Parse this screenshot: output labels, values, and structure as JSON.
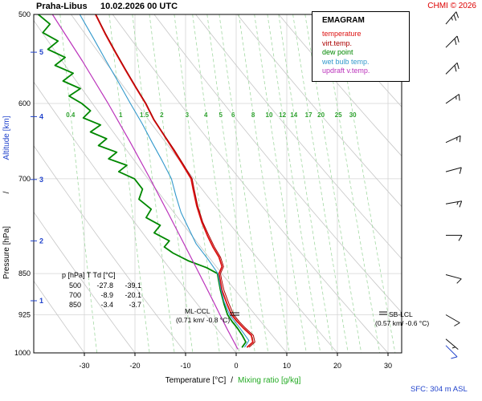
{
  "header": {
    "station": "Praha-Libus",
    "datetime": "10.02.2026 00 UTC",
    "copyright": "CHMI © 2026"
  },
  "legend": {
    "title": "EMAGRAM",
    "entries": [
      {
        "label": "temperature",
        "color": "#dd1111"
      },
      {
        "label": "virt.temp.",
        "color": "#aa0000"
      },
      {
        "label": "dew point",
        "color": "#008800"
      },
      {
        "label": "wet bulb temp.",
        "color": "#3399cc"
      },
      {
        "label": "updraft v.temp.",
        "color": "#bb33bb"
      }
    ]
  },
  "axes": {
    "pressure_label": "Pressure [hPa]",
    "separator": "/",
    "altitude_label": "Altitude [km]",
    "x_label": "Temperature [°C]",
    "x_sep": "/",
    "x_label2": "Mixing ratio [g/kg]",
    "pressure_ticks": [
      500,
      600,
      700,
      850,
      925,
      1000
    ],
    "altitude_ticks": [
      1,
      2,
      3,
      4,
      5
    ],
    "temp_ticks": [
      -30,
      -20,
      -10,
      0,
      10,
      20,
      30
    ]
  },
  "annotations": {
    "table_header": "p [hPa]     T    Td [°C]",
    "table_rows": [
      [
        "500",
        "-27.8",
        "-39.1"
      ],
      [
        "700",
        "-8.9",
        "-20.1"
      ],
      [
        "850",
        "-3.4",
        "-3.7"
      ]
    ],
    "ml_ccl": {
      "line1": "ML-CCL",
      "line2": "(0.71 km/ -0.8 °C)"
    },
    "sb_lcl": {
      "line1": "SB-LCL",
      "line2": "(0.57 km/ -0.6 °C)"
    },
    "sfc": "SFC: 304 m ASL"
  },
  "chart_data": {
    "type": "line",
    "title": "EMAGRAM sounding Praha-Libus 10.02.2026 00 UTC",
    "x_axis": {
      "label": "Temperature [°C]",
      "min": -40,
      "max": 32.7,
      "ticks": [
        -30,
        -20,
        -10,
        0,
        10,
        20,
        30
      ]
    },
    "y_axis": {
      "label": "Pressure [hPa]",
      "scale": "log",
      "top": 500,
      "bottom": 1000,
      "ticks": [
        500,
        600,
        700,
        850,
        925,
        1000
      ]
    },
    "units": {
      "pressure": "hPa",
      "temperature": "°C",
      "mixing_ratio": "g/kg"
    },
    "mixing_ratio_lines": [
      0.4,
      1,
      1.5,
      2,
      3,
      4,
      5,
      6,
      8,
      10,
      12,
      14,
      17,
      20,
      25,
      30
    ],
    "dry_adiabats_theta": [
      -40,
      -30,
      -20,
      -10,
      0,
      10,
      20,
      30,
      40,
      50,
      60,
      70,
      80,
      90,
      100
    ],
    "series": [
      {
        "name": "temperature",
        "color": "#dd1111",
        "width": 1.8,
        "points": [
          [
            988,
            2.2
          ],
          [
            978,
            3.3
          ],
          [
            965,
            3.0
          ],
          [
            950,
            1.4
          ],
          [
            938,
            0.2
          ],
          [
            925,
            -0.9
          ],
          [
            905,
            -1.8
          ],
          [
            880,
            -2.8
          ],
          [
            860,
            -3.2
          ],
          [
            850,
            -3.4
          ],
          [
            838,
            -2.8
          ],
          [
            822,
            -3.4
          ],
          [
            805,
            -4.6
          ],
          [
            788,
            -5.6
          ],
          [
            765,
            -6.8
          ],
          [
            740,
            -7.8
          ],
          [
            715,
            -8.5
          ],
          [
            700,
            -8.9
          ],
          [
            680,
            -10.6
          ],
          [
            660,
            -12.4
          ],
          [
            640,
            -14.3
          ],
          [
            620,
            -16.3
          ],
          [
            600,
            -17.9
          ],
          [
            580,
            -19.9
          ],
          [
            560,
            -21.9
          ],
          [
            540,
            -23.9
          ],
          [
            520,
            -25.9
          ],
          [
            500,
            -27.8
          ]
        ]
      },
      {
        "name": "virt_temp",
        "color": "#aa0000",
        "width": 1.0,
        "points": [
          [
            988,
            2.6
          ],
          [
            978,
            3.7
          ],
          [
            965,
            3.4
          ],
          [
            950,
            1.8
          ],
          [
            938,
            0.6
          ],
          [
            925,
            -0.5
          ],
          [
            905,
            -1.4
          ],
          [
            880,
            -2.4
          ],
          [
            860,
            -2.9
          ],
          [
            850,
            -3.1
          ],
          [
            838,
            -2.5
          ],
          [
            822,
            -3.1
          ],
          [
            805,
            -4.3
          ],
          [
            788,
            -5.3
          ],
          [
            765,
            -6.6
          ],
          [
            740,
            -7.6
          ],
          [
            715,
            -8.3
          ],
          [
            700,
            -8.7
          ],
          [
            680,
            -10.4
          ],
          [
            660,
            -12.2
          ],
          [
            640,
            -14.2
          ],
          [
            620,
            -16.2
          ],
          [
            600,
            -17.8
          ],
          [
            580,
            -19.8
          ],
          [
            560,
            -21.8
          ],
          [
            540,
            -23.8
          ],
          [
            520,
            -25.8
          ],
          [
            500,
            -27.7
          ]
        ]
      },
      {
        "name": "dew_point",
        "color": "#008800",
        "width": 1.8,
        "points": [
          [
            988,
            1.2
          ],
          [
            978,
            1.9
          ],
          [
            965,
            1.2
          ],
          [
            950,
            0.2
          ],
          [
            938,
            -0.8
          ],
          [
            925,
            -1.7
          ],
          [
            905,
            -2.4
          ],
          [
            880,
            -3.1
          ],
          [
            860,
            -3.5
          ],
          [
            850,
            -3.7
          ],
          [
            840,
            -5.8
          ],
          [
            828,
            -9.5
          ],
          [
            815,
            -12.5
          ],
          [
            805,
            -14.2
          ],
          [
            795,
            -13.2
          ],
          [
            782,
            -16.2
          ],
          [
            770,
            -15.0
          ],
          [
            758,
            -17.8
          ],
          [
            745,
            -16.8
          ],
          [
            730,
            -19.2
          ],
          [
            715,
            -18.5
          ],
          [
            700,
            -20.1
          ],
          [
            690,
            -23.2
          ],
          [
            681,
            -21.6
          ],
          [
            672,
            -25.2
          ],
          [
            663,
            -23.6
          ],
          [
            654,
            -27.2
          ],
          [
            645,
            -25.6
          ],
          [
            636,
            -28.8
          ],
          [
            627,
            -26.8
          ],
          [
            618,
            -30.2
          ],
          [
            609,
            -28.8
          ],
          [
            600,
            -30.5
          ],
          [
            591,
            -33.0
          ],
          [
            582,
            -30.8
          ],
          [
            573,
            -34.2
          ],
          [
            564,
            -32.2
          ],
          [
            555,
            -35.8
          ],
          [
            546,
            -33.8
          ],
          [
            537,
            -37.2
          ],
          [
            528,
            -35.2
          ],
          [
            519,
            -38.2
          ],
          [
            510,
            -36.8
          ],
          [
            500,
            -39.1
          ]
        ]
      },
      {
        "name": "wet_bulb",
        "color": "#3399cc",
        "width": 1.1,
        "points": [
          [
            988,
            1.7
          ],
          [
            975,
            2.5
          ],
          [
            950,
            0.7
          ],
          [
            925,
            -1.3
          ],
          [
            900,
            -2.4
          ],
          [
            875,
            -3.1
          ],
          [
            850,
            -3.6
          ],
          [
            825,
            -5.6
          ],
          [
            800,
            -7.9
          ],
          [
            775,
            -9.4
          ],
          [
            750,
            -10.9
          ],
          [
            725,
            -11.9
          ],
          [
            700,
            -12.8
          ],
          [
            675,
            -14.6
          ],
          [
            650,
            -16.6
          ],
          [
            625,
            -18.6
          ],
          [
            600,
            -20.9
          ],
          [
            575,
            -23.2
          ],
          [
            550,
            -25.7
          ],
          [
            525,
            -28.2
          ],
          [
            500,
            -30.9
          ]
        ]
      },
      {
        "name": "updraft_v_temp",
        "color": "#bb33bb",
        "width": 1.2,
        "points": [
          [
            992,
            0.3
          ],
          [
            950,
            -1.9
          ],
          [
            925,
            -3.2
          ],
          [
            900,
            -4.5
          ],
          [
            850,
            -7.3
          ],
          [
            800,
            -10.3
          ],
          [
            750,
            -13.5
          ],
          [
            700,
            -17.0
          ],
          [
            650,
            -20.9
          ],
          [
            600,
            -25.3
          ],
          [
            550,
            -30.4
          ],
          [
            500,
            -36.3
          ]
        ]
      }
    ],
    "wind_barbs": [
      {
        "p": 510,
        "dir": 40,
        "spd": 25
      },
      {
        "p": 535,
        "dir": 45,
        "spd": 20
      },
      {
        "p": 565,
        "dir": 45,
        "spd": 20
      },
      {
        "p": 600,
        "dir": 55,
        "spd": 15
      },
      {
        "p": 650,
        "dir": 65,
        "spd": 15
      },
      {
        "p": 690,
        "dir": 75,
        "spd": 10
      },
      {
        "p": 737,
        "dir": 80,
        "spd": 15
      },
      {
        "p": 786,
        "dir": 90,
        "spd": 10
      },
      {
        "p": 852,
        "dir": 105,
        "spd": 10
      },
      {
        "p": 925,
        "dir": 120,
        "spd": 10
      },
      {
        "p": 972,
        "dir": 130,
        "spd": 5
      }
    ],
    "surface_barb": {
      "p": 985,
      "dir": 135,
      "spd": 10,
      "color": "#2244cc"
    }
  }
}
